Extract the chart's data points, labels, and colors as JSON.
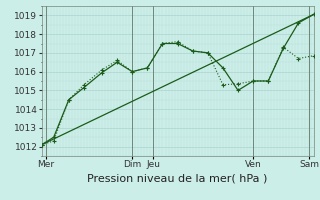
{
  "bg_color": "#cceee8",
  "grid_major_color": "#aad4ce",
  "grid_minor_color": "#bbddd8",
  "line_color": "#1a5c1a",
  "ylim": [
    1011.5,
    1019.5
  ],
  "yticks": [
    1012,
    1013,
    1014,
    1015,
    1016,
    1017,
    1018,
    1019
  ],
  "xlabel": "Pression niveau de la mer( hPa )",
  "xlabel_fontsize": 8,
  "tick_fontsize": 6.5,
  "xmin": 0,
  "xmax": 9.0,
  "series1_x": [
    0,
    0.4,
    0.9,
    1.4,
    2.0,
    2.5,
    3.0,
    3.5,
    4.0,
    4.5,
    5.0,
    5.5,
    6.0,
    6.5,
    7.0,
    7.5,
    8.0,
    8.5,
    9.0
  ],
  "series1_y": [
    1012.1,
    1012.3,
    1014.5,
    1015.3,
    1016.1,
    1016.6,
    1016.0,
    1016.2,
    1017.5,
    1017.6,
    1017.1,
    1017.0,
    1015.3,
    1015.35,
    1015.5,
    1015.5,
    1017.3,
    1016.7,
    1016.85
  ],
  "series2_x": [
    0,
    0.4,
    0.9,
    1.4,
    2.0,
    2.5,
    3.0,
    3.5,
    4.0,
    4.5,
    5.0,
    5.5,
    6.0,
    6.5,
    7.0,
    7.5,
    8.0,
    8.5,
    9.0
  ],
  "series2_y": [
    1012.1,
    1012.5,
    1014.5,
    1015.15,
    1015.95,
    1016.5,
    1016.0,
    1016.2,
    1017.5,
    1017.5,
    1017.1,
    1017.0,
    1016.2,
    1015.0,
    1015.5,
    1015.5,
    1017.25,
    1018.6,
    1019.05
  ],
  "series3_x": [
    0,
    9.0
  ],
  "series3_y": [
    1012.1,
    1019.05
  ],
  "xtick_positions": [
    0.15,
    3.0,
    3.7,
    7.0,
    8.85
  ],
  "xtick_labels": [
    "Mer",
    "Dim",
    "Jeu",
    "Ven",
    "Sam"
  ],
  "vline_positions": [
    0.15,
    3.0,
    3.7,
    7.0,
    8.85
  ]
}
